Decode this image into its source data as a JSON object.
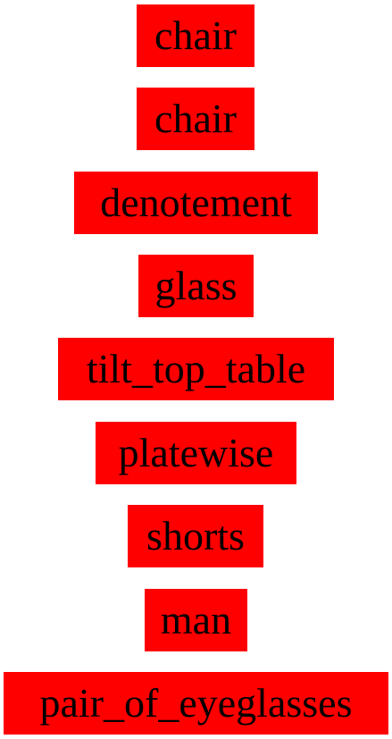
{
  "labels": [
    {
      "text": "chair"
    },
    {
      "text": "chair"
    },
    {
      "text": "denotement"
    },
    {
      "text": "glass"
    },
    {
      "text": "tilt_top_table"
    },
    {
      "text": "platewise"
    },
    {
      "text": "shorts"
    },
    {
      "text": "man"
    },
    {
      "text": "pair_of_eyeglasses"
    }
  ],
  "colors": {
    "label_background": "#ff0000",
    "label_text": "#000000",
    "page_background": "#ffffff"
  }
}
